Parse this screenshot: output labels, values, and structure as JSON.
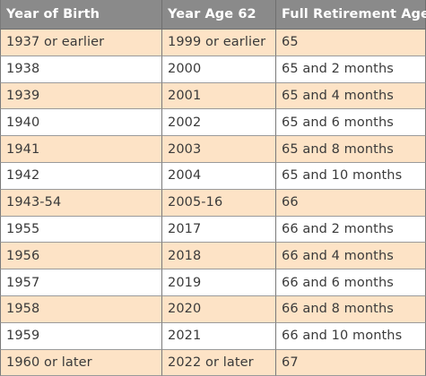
{
  "headers": [
    "Year of Birth",
    "Year Age 62",
    "Full Retirement Age"
  ],
  "rows": [
    [
      "1937 or earlier",
      "1999 or earlier",
      "65"
    ],
    [
      "1938",
      "2000",
      "65 and 2 months"
    ],
    [
      "1939",
      "2001",
      "65 and 4 months"
    ],
    [
      "1940",
      "2002",
      "65 and 6 months"
    ],
    [
      "1941",
      "2003",
      "65 and 8 months"
    ],
    [
      "1942",
      "2004",
      "65 and 10 months"
    ],
    [
      "1943-54",
      "2005-16",
      "66"
    ],
    [
      "1955",
      "2017",
      "66 and 2 months"
    ],
    [
      "1956",
      "2018",
      "66 and 4 months"
    ],
    [
      "1957",
      "2019",
      "66 and 6 months"
    ],
    [
      "1958",
      "2020",
      "66 and 8 months"
    ],
    [
      "1959",
      "2021",
      "66 and 10 months"
    ],
    [
      "1960 or later",
      "2022 or later",
      "67"
    ]
  ],
  "colors": {
    "header_bg": "#8a8a8a",
    "row_tan": "#fde3c6",
    "row_white": "#ffffff"
  }
}
